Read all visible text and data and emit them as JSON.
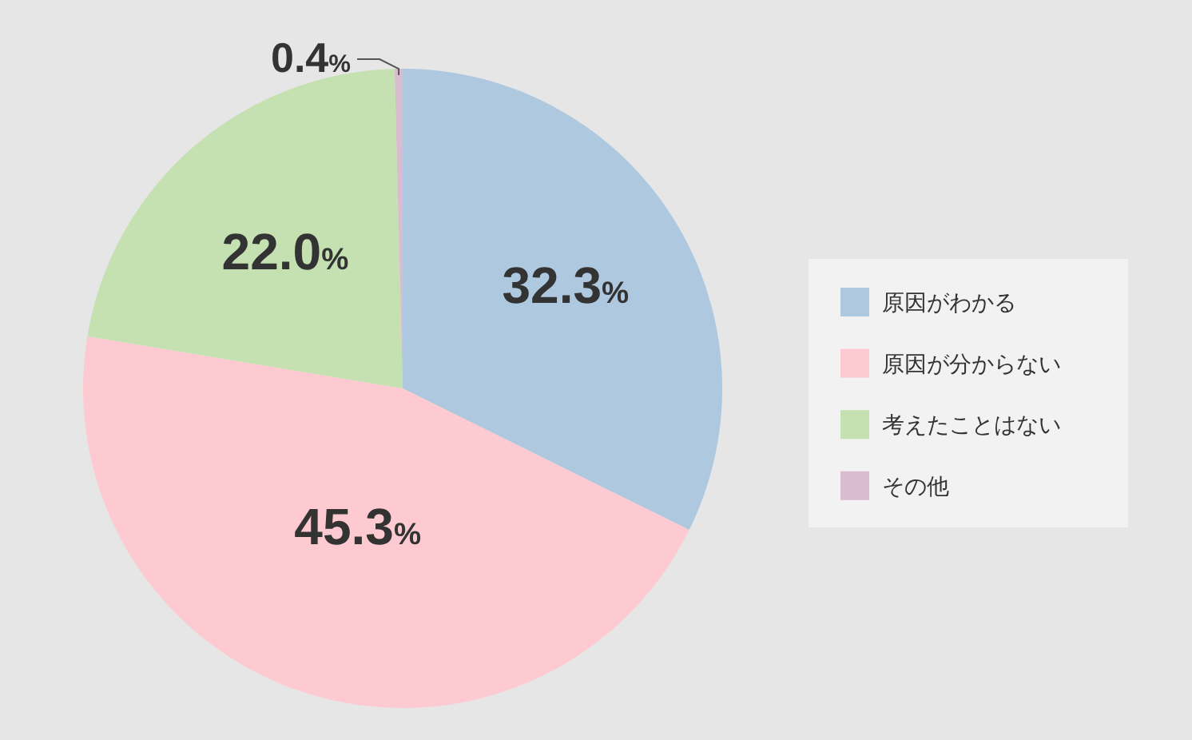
{
  "chart_data": {
    "type": "pie",
    "categories": [
      "原因がわかる",
      "原因が分からない",
      "考えたことはない",
      "その他"
    ],
    "values": [
      32.3,
      45.3,
      22.0,
      0.4
    ],
    "colors": [
      "#adc8df",
      "#fdcad2",
      "#c5e1b2",
      "#d9bccf"
    ],
    "value_labels": [
      "32.3%",
      "45.3%",
      "22.0%",
      "0.4%"
    ],
    "legend": "right"
  }
}
